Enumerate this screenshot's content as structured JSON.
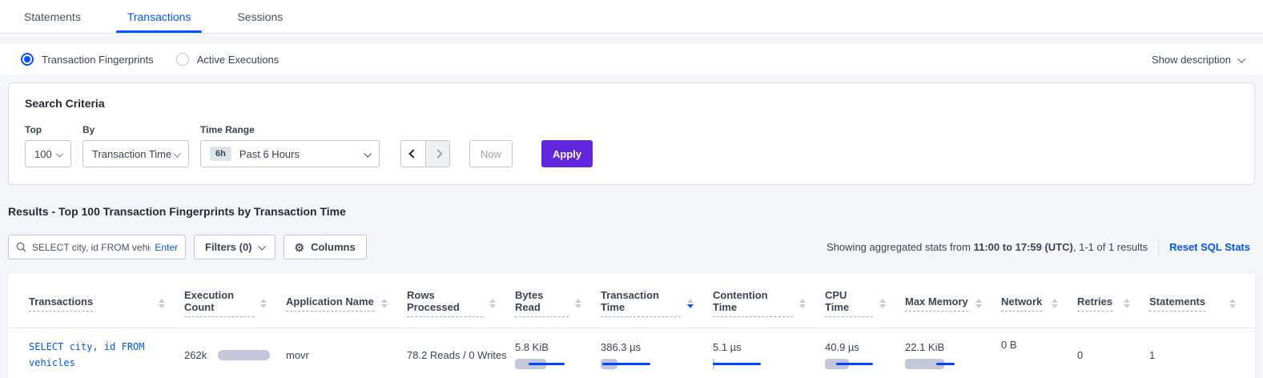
{
  "tabs": {
    "items": [
      {
        "label": "Statements",
        "active": false
      },
      {
        "label": "Transactions",
        "active": true
      },
      {
        "label": "Sessions",
        "active": false
      }
    ]
  },
  "view_toggle": {
    "options": [
      {
        "label": "Transaction Fingerprints",
        "selected": true
      },
      {
        "label": "Active Executions",
        "selected": false
      }
    ],
    "show_description_label": "Show description"
  },
  "search_criteria": {
    "title": "Search Criteria",
    "top": {
      "label": "Top",
      "value": "100"
    },
    "by": {
      "label": "By",
      "value": "Transaction Time"
    },
    "time_range": {
      "label": "Time Range",
      "badge": "6h",
      "value": "Past 6 Hours"
    },
    "now_label": "Now",
    "apply_label": "Apply"
  },
  "results": {
    "title": "Results - Top 100 Transaction Fingerprints by Transaction Time",
    "search": {
      "value": "SELECT city, id FROM vehicles W",
      "enter_label": "Enter"
    },
    "filters_label": "Filters (0)",
    "columns_label": "Columns",
    "stats_prefix": "Showing aggregated stats from ",
    "stats_range": "11:00 to 17:59 (UTC)",
    "stats_suffix": ", 1-1 of 1 results",
    "reset_label": "Reset SQL Stats"
  },
  "table": {
    "columns": [
      {
        "label": "Transactions",
        "sort": "none"
      },
      {
        "label": "Execution Count",
        "sort": "none"
      },
      {
        "label": "Application Name",
        "sort": "none"
      },
      {
        "label": "Rows Processed",
        "sort": "none"
      },
      {
        "label": "Bytes Read",
        "sort": "none"
      },
      {
        "label": "Transaction Time",
        "sort": "desc"
      },
      {
        "label": "Contention Time",
        "sort": "none"
      },
      {
        "label": "CPU Time",
        "sort": "none"
      },
      {
        "label": "Max Memory",
        "sort": "none"
      },
      {
        "label": "Network",
        "sort": "none"
      },
      {
        "label": "Retries",
        "sort": "none"
      },
      {
        "label": "Statements",
        "sort": "none"
      }
    ],
    "row": {
      "transaction": "SELECT city, id FROM vehicles",
      "execution_count": {
        "value": "262k",
        "bar_pct": 100
      },
      "application_name": "movr",
      "rows_processed": "78.2 Reads / 0 Writes",
      "bytes_read": {
        "value": "5.8 KiB",
        "bar_pct": 60,
        "line_start_pct": 26,
        "line_end_pct": 95
      },
      "transaction_time": {
        "value": "386.3 µs",
        "bar_pct": 32,
        "line_start_pct": 3,
        "line_end_pct": 95
      },
      "contention_time": {
        "value": "5.1 µs",
        "bar_pct": 3,
        "line_start_pct": 0,
        "line_end_pct": 93
      },
      "cpu_time": {
        "value": "40.9 µs",
        "bar_pct": 46,
        "line_start_pct": 22,
        "line_end_pct": 92
      },
      "max_memory": {
        "value": "22.1 KiB",
        "bar_pct": 75,
        "line_start_pct": 60,
        "line_end_pct": 95
      },
      "network": "0 B",
      "retries": "0",
      "statements": "1"
    }
  },
  "colors": {
    "accent_blue": "#0055ff",
    "apply_purple": "#6226e0",
    "bar_gray": "#c2c8d9",
    "bar_line_blue": "#0044ff"
  }
}
